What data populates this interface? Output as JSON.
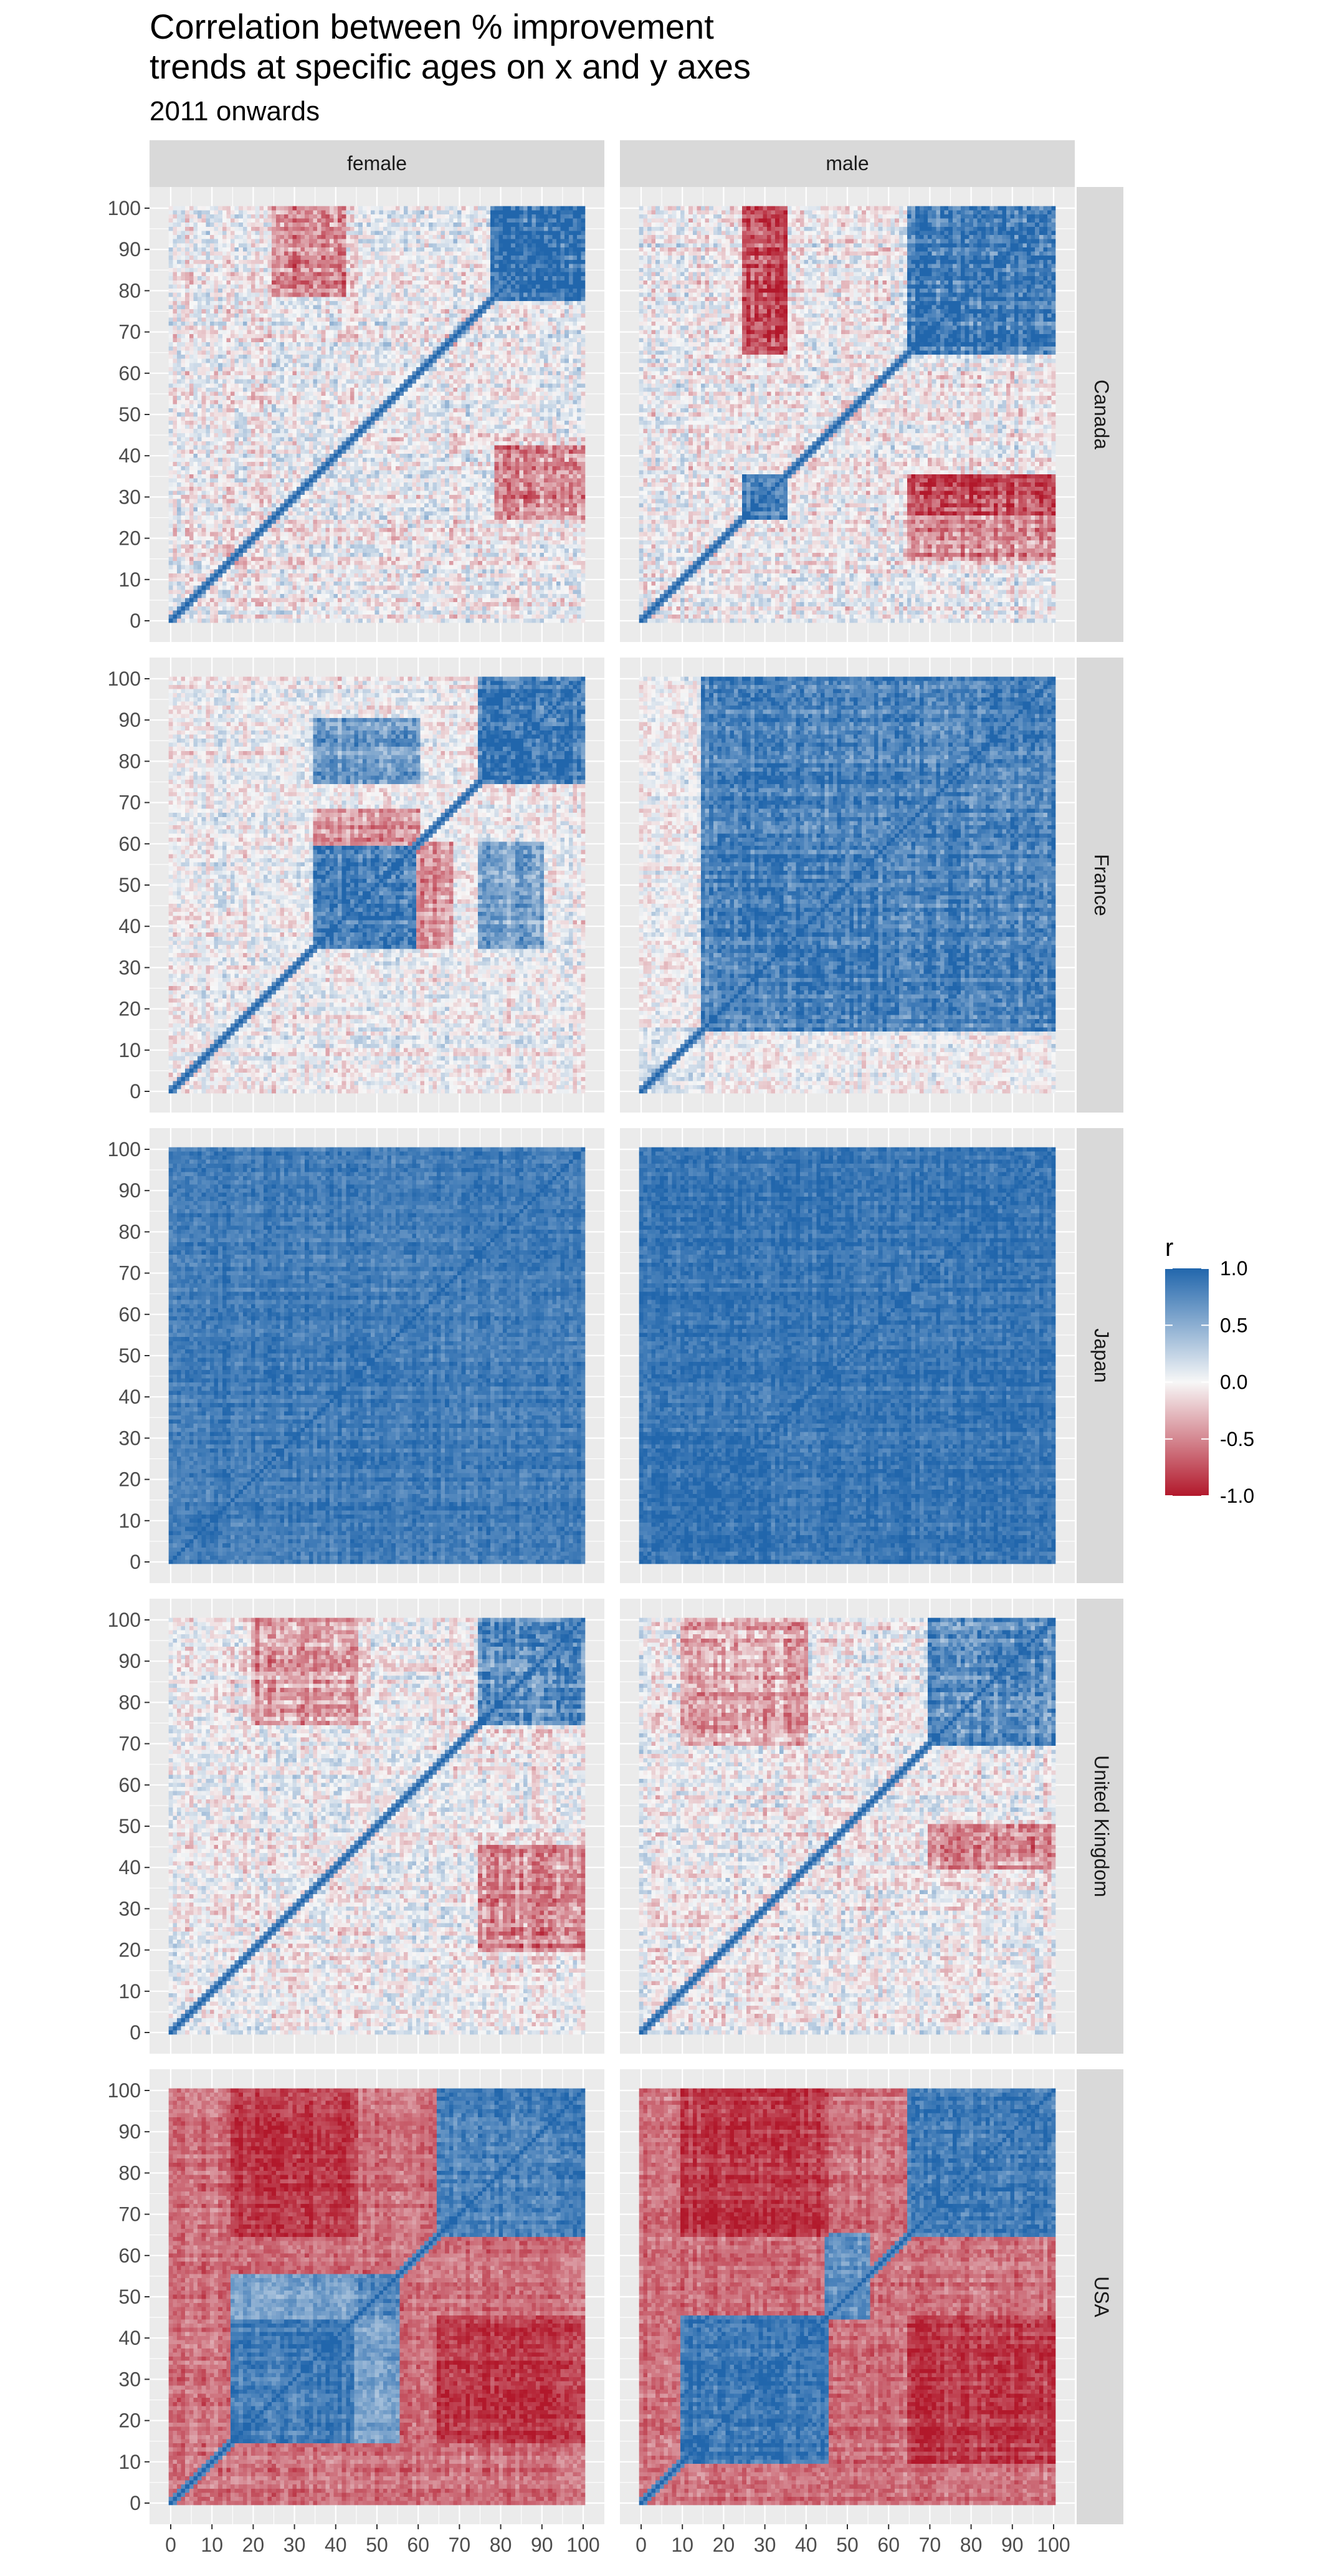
{
  "chart_data": {
    "type": "heatmap",
    "title_line1": "Correlation between % improvement",
    "title_line2": "trends at specific ages on x and y axes",
    "subtitle": "2011 onwards",
    "columns": [
      "female",
      "male"
    ],
    "rows": [
      "Canada",
      "France",
      "Japan",
      "United Kingdom",
      "USA"
    ],
    "x_range": [
      0,
      100
    ],
    "y_range": [
      0,
      100
    ],
    "x_ticks": [
      0,
      10,
      20,
      30,
      40,
      50,
      60,
      70,
      80,
      90,
      100
    ],
    "y_ticks": [
      0,
      10,
      20,
      30,
      40,
      50,
      60,
      70,
      80,
      90,
      100
    ],
    "x_tick_labels": [
      "0",
      "10",
      "20",
      "30",
      "40",
      "50",
      "60",
      "70",
      "80",
      "90",
      "100"
    ],
    "y_tick_labels": [
      "0",
      "10",
      "20",
      "30",
      "40",
      "50",
      "60",
      "70",
      "80",
      "90",
      "100"
    ],
    "legend": {
      "title": "r",
      "position": "right",
      "breaks": [
        1.0,
        0.5,
        0.0,
        -0.5,
        -1.0
      ],
      "labels": [
        "1.0",
        "0.5",
        "0.0",
        "-0.5",
        "-1.0"
      ],
      "low_color": "#b2182b",
      "mid_color": "#f7f7f7",
      "high_color": "#2166ac"
    },
    "panel_background": "#ebebeb",
    "strip_background": "#d9d9d9",
    "diagonal_r": 1.0,
    "panels": [
      {
        "row": "Canada",
        "col": "female",
        "blocks": [
          {
            "x": [
              78,
              100
            ],
            "y": [
              78,
              100
            ],
            "r": 0.9
          },
          {
            "x": [
              78,
              100
            ],
            "y": [
              25,
              42
            ],
            "r": -0.55
          },
          {
            "x": [
              25,
              42
            ],
            "y": [
              78,
              100
            ],
            "r": -0.55
          },
          {
            "x": [
              0,
              78
            ],
            "y": [
              0,
              78
            ],
            "r": 0.0
          }
        ],
        "noise": 0.55
      },
      {
        "row": "Canada",
        "col": "male",
        "blocks": [
          {
            "x": [
              65,
              100
            ],
            "y": [
              65,
              100
            ],
            "r": 0.85
          },
          {
            "x": [
              25,
              35
            ],
            "y": [
              25,
              35
            ],
            "r": 0.85
          },
          {
            "x": [
              25,
              35
            ],
            "y": [
              65,
              100
            ],
            "r": -0.75
          },
          {
            "x": [
              65,
              100
            ],
            "y": [
              25,
              35
            ],
            "r": -0.75
          },
          {
            "x": [
              65,
              100
            ],
            "y": [
              15,
              25
            ],
            "r": -0.45
          }
        ],
        "noise": 0.5
      },
      {
        "row": "France",
        "col": "female",
        "blocks": [
          {
            "x": [
              75,
              100
            ],
            "y": [
              75,
              100
            ],
            "r": 0.85
          },
          {
            "x": [
              35,
              60
            ],
            "y": [
              35,
              60
            ],
            "r": 0.8
          },
          {
            "x": [
              35,
              60
            ],
            "y": [
              75,
              90
            ],
            "r": 0.6
          },
          {
            "x": [
              75,
              90
            ],
            "y": [
              35,
              60
            ],
            "r": 0.55
          },
          {
            "x": [
              35,
              60
            ],
            "y": [
              60,
              68
            ],
            "r": -0.45
          },
          {
            "x": [
              60,
              68
            ],
            "y": [
              35,
              60
            ],
            "r": -0.45
          }
        ],
        "noise": 0.45
      },
      {
        "row": "France",
        "col": "male",
        "blocks": [
          {
            "x": [
              15,
              100
            ],
            "y": [
              15,
              100
            ],
            "r": 0.8
          },
          {
            "x": [
              0,
              15
            ],
            "y": [
              0,
              15
            ],
            "r": 0.2
          }
        ],
        "noise": 0.4
      },
      {
        "row": "Japan",
        "col": "female",
        "blocks": [
          {
            "x": [
              0,
              100
            ],
            "y": [
              0,
              100
            ],
            "r": 0.85
          }
        ],
        "noise": 0.25
      },
      {
        "row": "Japan",
        "col": "male",
        "blocks": [
          {
            "x": [
              0,
              100
            ],
            "y": [
              0,
              100
            ],
            "r": 0.88
          }
        ],
        "noise": 0.25
      },
      {
        "row": "United Kingdom",
        "col": "female",
        "blocks": [
          {
            "x": [
              75,
              100
            ],
            "y": [
              75,
              100
            ],
            "r": 0.75
          },
          {
            "x": [
              75,
              100
            ],
            "y": [
              20,
              45
            ],
            "r": -0.5
          },
          {
            "x": [
              20,
              45
            ],
            "y": [
              75,
              100
            ],
            "r": -0.4
          }
        ],
        "noise": 0.5
      },
      {
        "row": "United Kingdom",
        "col": "male",
        "blocks": [
          {
            "x": [
              70,
              100
            ],
            "y": [
              70,
              100
            ],
            "r": 0.75
          },
          {
            "x": [
              70,
              100
            ],
            "y": [
              40,
              50
            ],
            "r": -0.45
          },
          {
            "x": [
              10,
              40
            ],
            "y": [
              70,
              100
            ],
            "r": -0.35
          }
        ],
        "noise": 0.5
      },
      {
        "row": "USA",
        "col": "female",
        "blocks": [
          {
            "x": [
              0,
              100
            ],
            "y": [
              0,
              100
            ],
            "r": -0.6
          },
          {
            "x": [
              15,
              45
            ],
            "y": [
              15,
              45
            ],
            "r": 0.85
          },
          {
            "x": [
              65,
              100
            ],
            "y": [
              65,
              100
            ],
            "r": 0.8
          },
          {
            "x": [
              45,
              55
            ],
            "y": [
              45,
              55
            ],
            "r": 0.75
          },
          {
            "x": [
              15,
              45
            ],
            "y": [
              65,
              100
            ],
            "r": -0.85
          },
          {
            "x": [
              65,
              100
            ],
            "y": [
              15,
              45
            ],
            "r": -0.85
          },
          {
            "x": [
              45,
              55
            ],
            "y": [
              15,
              45
            ],
            "r": 0.6
          },
          {
            "x": [
              15,
              45
            ],
            "y": [
              45,
              55
            ],
            "r": 0.6
          }
        ],
        "noise": 0.3
      },
      {
        "row": "USA",
        "col": "male",
        "blocks": [
          {
            "x": [
              0,
              100
            ],
            "y": [
              0,
              100
            ],
            "r": -0.6
          },
          {
            "x": [
              10,
              45
            ],
            "y": [
              10,
              45
            ],
            "r": 0.9
          },
          {
            "x": [
              65,
              100
            ],
            "y": [
              65,
              100
            ],
            "r": 0.85
          },
          {
            "x": [
              45,
              55
            ],
            "y": [
              45,
              65
            ],
            "r": 0.7
          },
          {
            "x": [
              10,
              45
            ],
            "y": [
              65,
              100
            ],
            "r": -0.85
          },
          {
            "x": [
              65,
              100
            ],
            "y": [
              10,
              45
            ],
            "r": -0.85
          }
        ],
        "noise": 0.3
      }
    ]
  }
}
